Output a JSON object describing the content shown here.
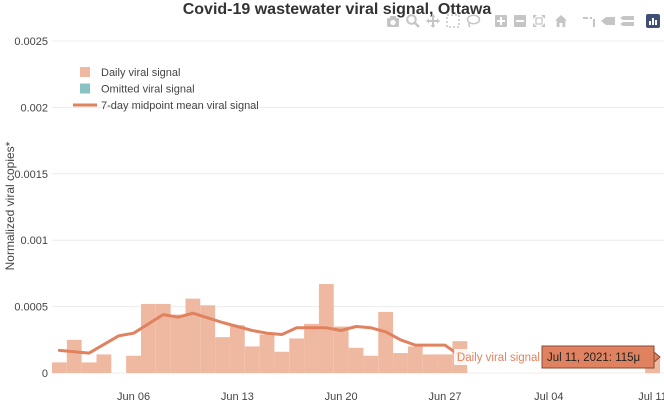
{
  "colors": {
    "bar": "#efb9a1",
    "line": "#e0825f",
    "omitted": "#88c2c3",
    "grid": "#ececec",
    "text": "#444444",
    "title": "#333333",
    "tooltip_bg": "#e0825f",
    "modebar_icon": "#c5c5c5"
  },
  "chart_data": {
    "type": "bar",
    "title": "Covid-19 wastewater viral signal, Ottawa",
    "xlabel": "",
    "ylabel": "Normalized viral copies*",
    "ylim": [
      0,
      0.0025
    ],
    "xlim": [
      "2021-06-01",
      "2021-07-11"
    ],
    "yticks": [
      "0",
      "0.0005",
      "0.001",
      "0.0015",
      "0.002",
      "0.0025"
    ],
    "xticks": [
      {
        "date": "2021-06-06",
        "label": "Jun 06"
      },
      {
        "date": "2021-06-13",
        "label": "Jun 13"
      },
      {
        "date": "2021-06-20",
        "label": "Jun 20"
      },
      {
        "date": "2021-06-27",
        "label": "Jun 27"
      },
      {
        "date": "2021-07-04",
        "label": "Jul 04"
      },
      {
        "date": "2021-07-11",
        "label": "Jul 11"
      }
    ],
    "grid": true,
    "legend_position": "top-left",
    "legend": [
      {
        "label": "Daily viral signal",
        "symbol": "square",
        "color_key": "bar"
      },
      {
        "label": "Omitted viral signal",
        "symbol": "square",
        "color_key": "omitted"
      },
      {
        "label": "7-day midpoint mean viral signal",
        "symbol": "line",
        "color_key": "line"
      }
    ],
    "series": [
      {
        "name": "Daily viral signal",
        "type": "bar",
        "points": [
          [
            "2021-06-01",
            8e-05
          ],
          [
            "2021-06-02",
            0.00025
          ],
          [
            "2021-06-03",
            8e-05
          ],
          [
            "2021-06-04",
            0.00014
          ],
          [
            "2021-06-06",
            0.00013
          ],
          [
            "2021-06-07",
            0.00052
          ],
          [
            "2021-06-08",
            0.00052
          ],
          [
            "2021-06-09",
            0.00044
          ],
          [
            "2021-06-10",
            0.00056
          ],
          [
            "2021-06-11",
            0.00051
          ],
          [
            "2021-06-12",
            0.00027
          ],
          [
            "2021-06-13",
            0.00036
          ],
          [
            "2021-06-14",
            0.0002
          ],
          [
            "2021-06-15",
            0.00029
          ],
          [
            "2021-06-16",
            0.00016
          ],
          [
            "2021-06-17",
            0.00026
          ],
          [
            "2021-06-18",
            0.00037
          ],
          [
            "2021-06-19",
            0.00067
          ],
          [
            "2021-06-20",
            0.00035
          ],
          [
            "2021-06-21",
            0.00019
          ],
          [
            "2021-06-22",
            0.00013
          ],
          [
            "2021-06-23",
            0.00046
          ],
          [
            "2021-06-24",
            0.00015
          ],
          [
            "2021-06-25",
            0.0002
          ],
          [
            "2021-06-26",
            0.00014
          ],
          [
            "2021-06-27",
            0.00014
          ],
          [
            "2021-06-28",
            0.00024
          ],
          [
            "2021-07-11",
            0.000115
          ]
        ]
      },
      {
        "name": "7-day midpoint mean viral signal",
        "type": "line",
        "points": [
          [
            "2021-06-01",
            0.00017
          ],
          [
            "2021-06-03",
            0.00015
          ],
          [
            "2021-06-05",
            0.00028
          ],
          [
            "2021-06-06",
            0.0003
          ],
          [
            "2021-06-08",
            0.00044
          ],
          [
            "2021-06-09",
            0.00042
          ],
          [
            "2021-06-10",
            0.00045
          ],
          [
            "2021-06-12",
            0.00038
          ],
          [
            "2021-06-13",
            0.00035
          ],
          [
            "2021-06-14",
            0.00032
          ],
          [
            "2021-06-15",
            0.0003
          ],
          [
            "2021-06-16",
            0.00029
          ],
          [
            "2021-06-17",
            0.00034
          ],
          [
            "2021-06-18",
            0.00034
          ],
          [
            "2021-06-19",
            0.00034
          ],
          [
            "2021-06-20",
            0.00032
          ],
          [
            "2021-06-21",
            0.00035
          ],
          [
            "2021-06-22",
            0.00034
          ],
          [
            "2021-06-23",
            0.00031
          ],
          [
            "2021-06-24",
            0.00025
          ],
          [
            "2021-06-25",
            0.00021
          ],
          [
            "2021-06-26",
            0.00021
          ],
          [
            "2021-06-27",
            0.00021
          ],
          [
            "2021-06-28",
            0.00013
          ]
        ]
      }
    ],
    "hover": {
      "date": "2021-07-11",
      "trace_label": "Daily viral signal",
      "value_label": "Jul 11, 2021: 115μ"
    }
  },
  "modebar": [
    {
      "icon": "camera-icon"
    },
    {
      "icon": "zoom-icon"
    },
    {
      "icon": "pan-icon"
    },
    {
      "icon": "box-select-icon"
    },
    {
      "icon": "lasso-select-icon"
    },
    {
      "icon": "zoom-in-icon"
    },
    {
      "icon": "zoom-out-icon"
    },
    {
      "icon": "autoscale-icon"
    },
    {
      "icon": "reset-axes-icon"
    },
    {
      "icon": "toggle-spike-lines-icon"
    },
    {
      "icon": "hover-closest-icon"
    },
    {
      "icon": "hover-compare-icon"
    },
    {
      "icon": "plotly-logo-icon"
    }
  ]
}
